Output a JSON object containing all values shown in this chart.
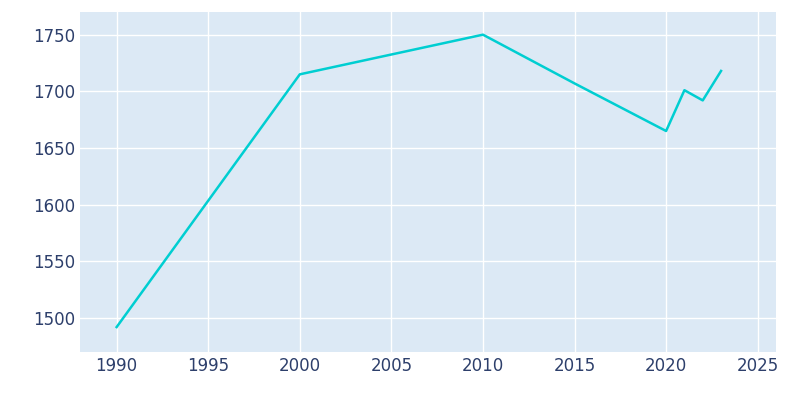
{
  "years": [
    1990,
    2000,
    2010,
    2015,
    2020,
    2021,
    2022,
    2023
  ],
  "population": [
    1492,
    1715,
    1750,
    1707,
    1665,
    1701,
    1692,
    1718
  ],
  "line_color": "#00CED1",
  "plot_bg_color": "#dce9f5",
  "fig_bg_color": "#ffffff",
  "grid_color": "#ffffff",
  "tick_color": "#2d3f6b",
  "xlim": [
    1988,
    2026
  ],
  "ylim": [
    1470,
    1770
  ],
  "xticks": [
    1990,
    1995,
    2000,
    2005,
    2010,
    2015,
    2020,
    2025
  ],
  "yticks": [
    1500,
    1550,
    1600,
    1650,
    1700,
    1750
  ],
  "line_width": 1.8,
  "tick_labelsize": 12
}
